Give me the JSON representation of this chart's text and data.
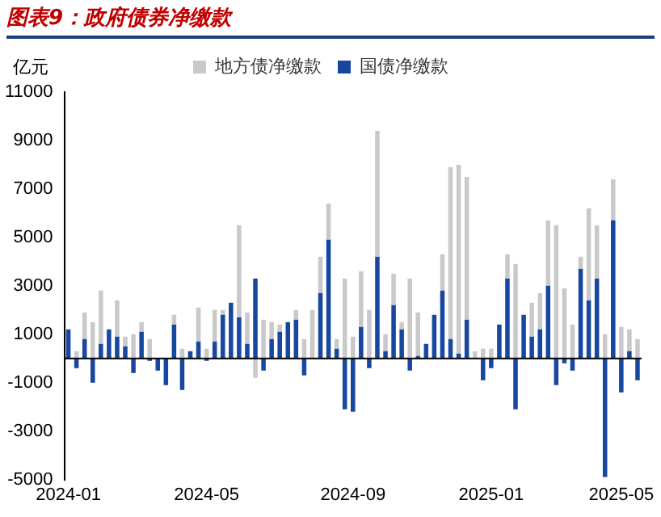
{
  "chart_data": {
    "type": "bar",
    "title": "图表9：政府债券净缴款",
    "ylabel": "亿元",
    "stacked": true,
    "legend": "top",
    "grid": false,
    "categories": [
      "2024-01",
      null,
      null,
      null,
      null,
      null,
      null,
      null,
      null,
      null,
      null,
      null,
      null,
      null,
      null,
      null,
      null,
      "2024-05",
      null,
      null,
      null,
      null,
      null,
      null,
      null,
      null,
      null,
      null,
      null,
      null,
      null,
      null,
      null,
      null,
      null,
      "2024-09",
      null,
      null,
      null,
      null,
      null,
      null,
      null,
      null,
      null,
      null,
      null,
      null,
      null,
      null,
      null,
      null,
      "2025-01",
      null,
      null,
      null,
      null,
      null,
      null,
      null,
      null,
      null,
      null,
      null,
      null,
      null,
      null,
      null,
      "2025-05",
      null,
      null
    ],
    "ylim": [
      -5000,
      11000
    ],
    "yticks": [
      -5000,
      -3000,
      -1000,
      1000,
      3000,
      5000,
      7000,
      9000,
      11000
    ],
    "series": [
      {
        "name": "国债净缴款",
        "color": "#17479e",
        "values": [
          1200,
          -400,
          800,
          -1000,
          600,
          1200,
          900,
          500,
          -600,
          1100,
          -100,
          -500,
          -1100,
          1400,
          -1300,
          300,
          700,
          -100,
          700,
          1800,
          2300,
          1700,
          600,
          3300,
          -500,
          800,
          1100,
          1500,
          1600,
          -700,
          0,
          2700,
          4900,
          400,
          -2100,
          -2200,
          1300,
          -400,
          4200,
          300,
          2200,
          1200,
          -500,
          100,
          600,
          1800,
          2800,
          800,
          200,
          1600,
          0,
          -900,
          -400,
          1400,
          3300,
          -2100,
          1800,
          900,
          1200,
          3000,
          -1100,
          -200,
          -500,
          3700,
          2400,
          3300,
          -4900,
          5700,
          -1400,
          300,
          -900
        ]
      },
      {
        "name": "地方债净缴款",
        "color": "#c9c9c9",
        "values": [
          0,
          300,
          1100,
          1500,
          2200,
          null,
          1500,
          400,
          1000,
          400,
          800,
          0,
          0,
          400,
          400,
          null,
          1400,
          400,
          1300,
          200,
          0,
          3800,
          1300,
          -800,
          1600,
          700,
          300,
          0,
          400,
          800,
          2000,
          1500,
          1500,
          400,
          3300,
          900,
          2300,
          2000,
          5200,
          700,
          1300,
          300,
          3300,
          1800,
          null,
          0,
          1500,
          7100,
          7800,
          5900,
          300,
          400,
          400,
          0,
          1000,
          3900,
          0,
          1400,
          1500,
          2700,
          5500,
          2900,
          1400,
          500,
          3800,
          2200,
          1000,
          1700,
          1300,
          900,
          800
        ]
      }
    ]
  }
}
